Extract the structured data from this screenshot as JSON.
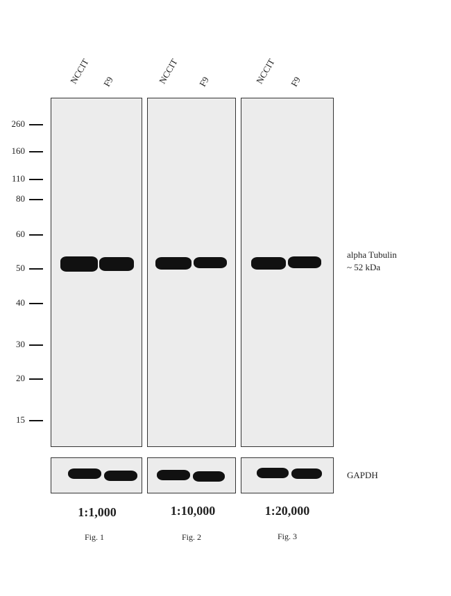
{
  "lanes": [
    {
      "label": "NCCIT"
    },
    {
      "label": "F9"
    },
    {
      "label": "NCCIT"
    },
    {
      "label": "F9"
    },
    {
      "label": "NCCIT"
    },
    {
      "label": "F9"
    }
  ],
  "mw_markers": [
    "260",
    "160",
    "110",
    "80",
    "60",
    "50",
    "40",
    "30",
    "20",
    "15"
  ],
  "target_label": {
    "line1": "alpha Tubulin",
    "line2": "~ 52 kDa"
  },
  "loading_label": "GAPDH",
  "panels": [
    {
      "dilution": "1:1,000",
      "fig": "Fig. 1"
    },
    {
      "dilution": "1:10,000",
      "fig": "Fig. 2"
    },
    {
      "dilution": "1:20,000",
      "fig": "Fig. 3"
    }
  ],
  "colors": {
    "membrane": "#ececec",
    "band": "#111111"
  }
}
